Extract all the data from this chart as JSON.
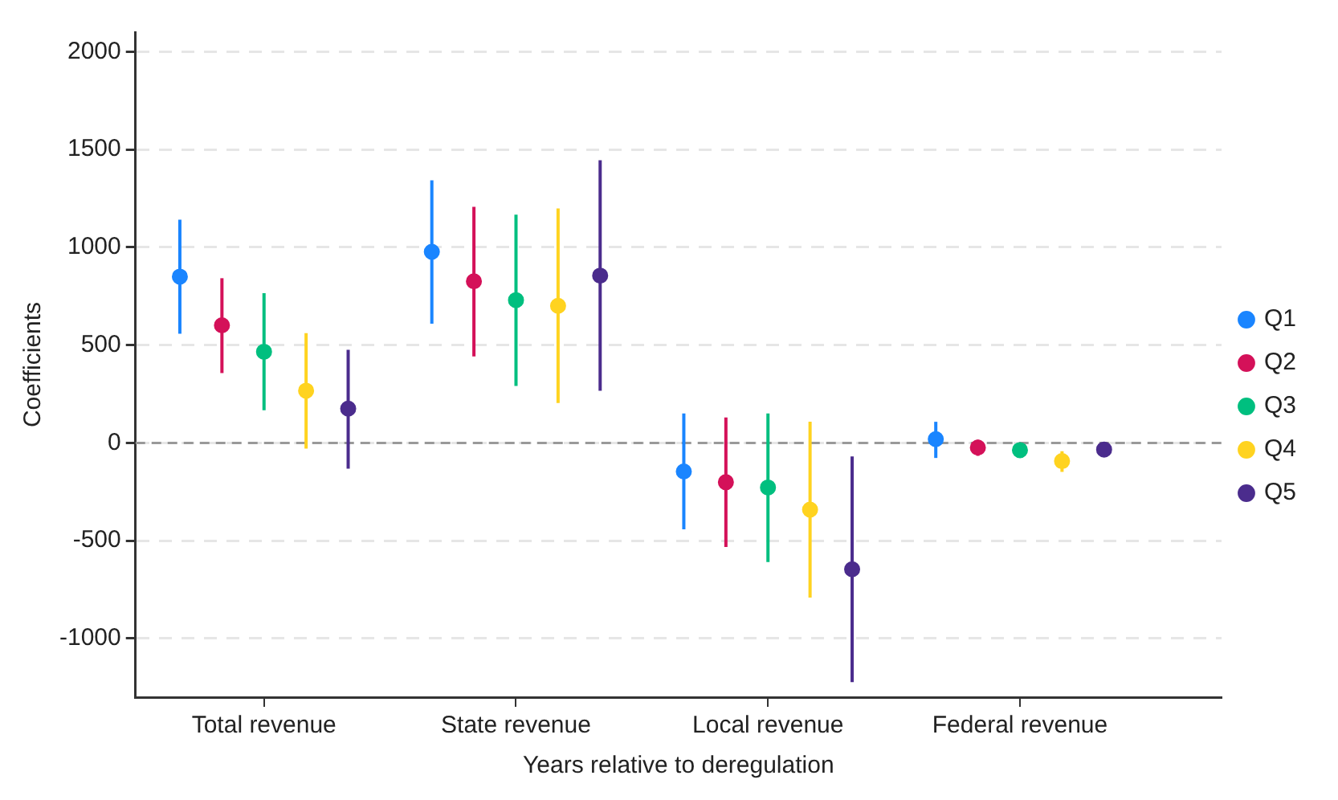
{
  "chart_data": {
    "type": "scatter",
    "xlabel": "Years relative to deregulation",
    "ylabel": "Coefficients",
    "categories": [
      "Total revenue",
      "State revenue",
      "Local revenue",
      "Federal revenue"
    ],
    "series": [
      {
        "name": "Q1",
        "color": "#1a85ff",
        "values": [
          850,
          977,
          -146,
          19
        ],
        "errors": [
          [
            558,
            1141
          ],
          [
            609,
            1342
          ],
          [
            -442,
            151
          ],
          [
            -77,
            108
          ]
        ]
      },
      {
        "name": "Q2",
        "color": "#d41159",
        "values": [
          601,
          826,
          -201,
          -24
        ],
        "errors": [
          [
            357,
            842
          ],
          [
            442,
            1207
          ],
          [
            -532,
            130
          ],
          [
            -66,
            16
          ]
        ]
      },
      {
        "name": "Q3",
        "color": "#00bf7f",
        "values": [
          466,
          730,
          -228,
          -37
        ],
        "errors": [
          [
            167,
            765
          ],
          [
            291,
            1167
          ],
          [
            -609,
            151
          ],
          [
            -55,
            -20
          ]
        ]
      },
      {
        "name": "Q4",
        "color": "#ffd320",
        "values": [
          267,
          701,
          -341,
          -93
        ],
        "errors": [
          [
            -29,
            561
          ],
          [
            204,
            1199
          ],
          [
            -791,
            108
          ],
          [
            -148,
            -42
          ]
        ]
      },
      {
        "name": "Q5",
        "color": "#4b2c8d",
        "values": [
          175,
          855,
          -646,
          -34
        ],
        "errors": [
          [
            -132,
            476
          ],
          [
            267,
            1445
          ],
          [
            -1223,
            -69
          ],
          [
            -44,
            -24
          ]
        ]
      }
    ],
    "ylim": [
      -1300,
      2100
    ],
    "yticks": [
      -1000,
      -500,
      0,
      500,
      1000,
      1500,
      2000
    ],
    "grid": "y",
    "legend": "right",
    "marker": "circle",
    "ref_lines": [
      {
        "axis": "y",
        "value": 0,
        "color": "#999999",
        "line_style": "dashed"
      }
    ]
  }
}
